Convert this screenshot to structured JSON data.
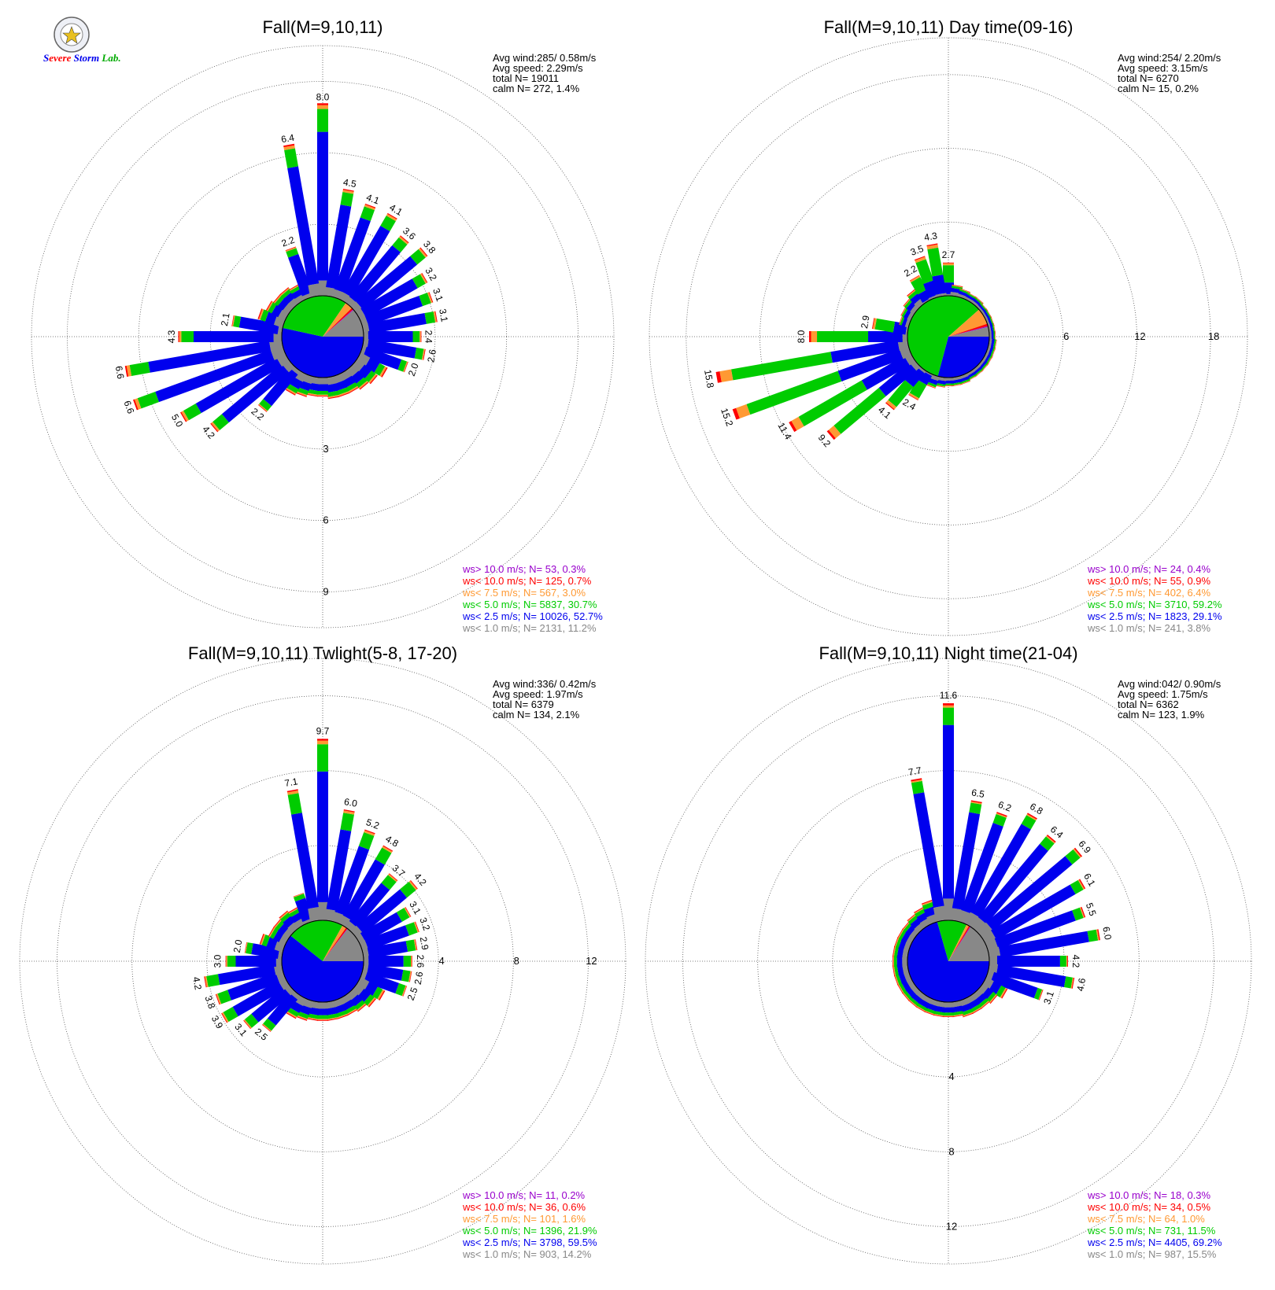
{
  "logo": {
    "text": "Severe Storm Lab."
  },
  "colors": {
    "calm": "#888888",
    "lt1": "#888888",
    "lt2p5": "#0000ee",
    "lt5": "#00cc00",
    "lt7p5": "#ff9933",
    "lt10": "#ff0000",
    "gt10": "#9900cc"
  },
  "chart_data": [
    {
      "type": "polar-bar (wind rose)",
      "title": "Fall(M=9,10,11)",
      "avg_wind": "Avg wind:285/ 0.58m/s",
      "avg_speed": "Avg speed: 2.29m/s",
      "total": "total N=      19011",
      "calm": "calm N=    272,   1.4%",
      "ring_max": 10.5,
      "rings": [
        3,
        6,
        9
      ],
      "ring_label_dir": "south",
      "legend": [
        {
          "label": "ws> 10.0 m/s; N=    53,  0.3%",
          "color": "#9900cc"
        },
        {
          "label": "ws< 10.0 m/s; N=   125,  0.7%",
          "color": "#ff0000"
        },
        {
          "label": "ws<  7.5 m/s; N=   567,  3.0%",
          "color": "#ff9933"
        },
        {
          "label": "ws<  5.0 m/s; N=  5837, 30.7%",
          "color": "#00cc00"
        },
        {
          "label": "ws<  2.5 m/s; N= 10026, 52.7%",
          "color": "#0000ee"
        },
        {
          "label": "ws<  1.0 m/s; N=  2131, 11.2%",
          "color": "#888888"
        }
      ],
      "pie": [
        52.7,
        30.7,
        3.0,
        0.7,
        0.3,
        11.2
      ],
      "directions": [
        0,
        10,
        20,
        30,
        40,
        50,
        60,
        70,
        80,
        90,
        100,
        110,
        120,
        130,
        140,
        150,
        160,
        170,
        180,
        190,
        200,
        210,
        220,
        230,
        240,
        250,
        260,
        270,
        280,
        290,
        300,
        310,
        320,
        330,
        340,
        350
      ],
      "totals": [
        8.0,
        4.5,
        4.1,
        4.1,
        3.6,
        3.8,
        3.2,
        3.1,
        3.1,
        2.4,
        2.6,
        2.0,
        1.3,
        1.1,
        1.0,
        0.9,
        0.9,
        0.9,
        0.8,
        0.8,
        0.9,
        1.0,
        2.2,
        4.2,
        5.0,
        6.6,
        6.6,
        4.3,
        2.1,
        1.1,
        0.9,
        0.8,
        0.8,
        0.7,
        2.2,
        6.4
      ],
      "labeled": [
        "8.0",
        "4.5",
        "4.1",
        "4.1",
        "3.6",
        "3.8",
        "3.2",
        "3.1",
        "3.1",
        "2.4",
        "2.6",
        "2.0",
        "",
        "",
        "",
        "",
        "",
        "",
        "",
        "",
        "",
        "",
        "2.2",
        "4.2",
        "5.0",
        "6.6",
        "6.6",
        "4.3",
        "2.1",
        "",
        "",
        "",
        "",
        "",
        "2.2",
        "6.4"
      ],
      "class_frac": [
        0.08,
        0.78,
        0.12,
        0.02,
        0.01
      ]
    },
    {
      "type": "polar-bar (wind rose)",
      "title": "Fall(M=9,10,11) Day time(09-16)",
      "avg_wind": "Avg wind:254/ 2.20m/s",
      "avg_speed": "Avg speed: 3.15m/s",
      "total": "total N=        6270",
      "calm": "calm N=     15,   0.2%",
      "ring_max": 21,
      "rings": [
        6,
        12,
        18
      ],
      "ring_label_dir": "east",
      "legend": [
        {
          "label": "ws> 10.0 m/s; N=    24,  0.4%",
          "color": "#9900cc"
        },
        {
          "label": "ws< 10.0 m/s; N=    55,  0.9%",
          "color": "#ff0000"
        },
        {
          "label": "ws<  7.5 m/s; N=   402,  6.4%",
          "color": "#ff9933"
        },
        {
          "label": "ws<  5.0 m/s; N=  3710, 59.2%",
          "color": "#00cc00"
        },
        {
          "label": "ws<  2.5 m/s; N=  1823, 29.1%",
          "color": "#0000ee"
        },
        {
          "label": "ws<  1.0 m/s; N=   241,  3.8%",
          "color": "#888888"
        }
      ],
      "pie": [
        29.1,
        59.2,
        6.4,
        0.9,
        0.4,
        3.8
      ],
      "directions": [
        0,
        10,
        20,
        30,
        40,
        50,
        60,
        70,
        80,
        90,
        100,
        110,
        120,
        130,
        140,
        150,
        160,
        170,
        180,
        190,
        200,
        210,
        220,
        230,
        240,
        250,
        260,
        270,
        280,
        290,
        300,
        310,
        320,
        330,
        340,
        350
      ],
      "totals": [
        2.7,
        0.9,
        0.7,
        0.6,
        0.6,
        0.5,
        0.5,
        0.5,
        0.5,
        0.5,
        0.6,
        0.6,
        0.6,
        0.6,
        0.6,
        0.6,
        0.7,
        0.7,
        0.7,
        0.8,
        1.0,
        2.4,
        4.1,
        9.2,
        11.4,
        15.2,
        15.8,
        8.0,
        2.9,
        0.8,
        0.9,
        1.1,
        1.4,
        2.2,
        3.5,
        4.3
      ],
      "labeled": [
        "2.7",
        "",
        "",
        "",
        "",
        "",
        "",
        "",
        "",
        "",
        "",
        "",
        "",
        "",
        "",
        "",
        "",
        "",
        "",
        "",
        "",
        "2.4",
        "4.1",
        "9.2",
        "11.4",
        "15.2",
        "15.8",
        "8.0",
        "2.9",
        "",
        "",
        "",
        "",
        "2.2",
        "3.5",
        "4.3"
      ],
      "class_frac": [
        0.05,
        0.35,
        0.52,
        0.06,
        0.02
      ]
    },
    {
      "type": "polar-bar (wind rose)",
      "title": "Fall(M=9,10,11) Twlight(5-8, 17-20)",
      "avg_wind": "Avg wind:336/ 0.42m/s",
      "avg_speed": "Avg speed: 1.97m/s",
      "total": "total N=        6379",
      "calm": "calm N=    134,   2.1%",
      "ring_max": 14,
      "rings": [
        4,
        8,
        12
      ],
      "ring_label_dir": "east",
      "legend": [
        {
          "label": "ws> 10.0 m/s; N=    11,  0.2%",
          "color": "#9900cc"
        },
        {
          "label": "ws< 10.0 m/s; N=    36,  0.6%",
          "color": "#ff0000"
        },
        {
          "label": "ws<  7.5 m/s; N=   101,  1.6%",
          "color": "#ff9933"
        },
        {
          "label": "ws<  5.0 m/s; N=  1396, 21.9%",
          "color": "#00cc00"
        },
        {
          "label": "ws<  2.5 m/s; N=  3798, 59.5%",
          "color": "#0000ee"
        },
        {
          "label": "ws<  1.0 m/s; N=   903, 14.2%",
          "color": "#888888"
        }
      ],
      "pie": [
        59.5,
        21.9,
        1.6,
        0.6,
        0.2,
        14.2
      ],
      "directions": [
        0,
        10,
        20,
        30,
        40,
        50,
        60,
        70,
        80,
        90,
        100,
        110,
        120,
        130,
        140,
        150,
        160,
        170,
        180,
        190,
        200,
        210,
        220,
        230,
        240,
        250,
        260,
        270,
        280,
        290,
        300,
        310,
        320,
        330,
        340,
        350
      ],
      "totals": [
        9.7,
        6.0,
        5.2,
        4.8,
        3.7,
        4.2,
        3.1,
        3.2,
        2.9,
        2.6,
        2.6,
        2.5,
        1.5,
        1.3,
        1.1,
        1.0,
        1.0,
        1.0,
        1.0,
        1.0,
        1.1,
        1.2,
        2.5,
        3.1,
        3.9,
        3.8,
        4.2,
        3.0,
        2.0,
        1.3,
        1.0,
        1.0,
        1.1,
        1.0,
        1.6,
        7.1
      ],
      "labeled": [
        "9.7",
        "6.0",
        "5.2",
        "4.8",
        "3.7",
        "4.2",
        "3.1",
        "3.2",
        "2.9",
        "2.6",
        "2.6",
        "2.5",
        "",
        "",
        "",
        "",
        "",
        "",
        "",
        "",
        "",
        "",
        "2.5",
        "3.1",
        "3.9",
        "3.8",
        "4.2",
        "3.0",
        "2.0",
        "",
        "",
        "",
        "",
        "",
        "",
        "7.1"
      ],
      "class_frac": [
        0.1,
        0.72,
        0.15,
        0.02,
        0.01
      ]
    },
    {
      "type": "polar-bar (wind rose)",
      "title": "Fall(M=9,10,11) Night time(21-04)",
      "avg_wind": "Avg wind:042/ 0.90m/s",
      "avg_speed": "Avg speed: 1.75m/s",
      "total": "total N=        6362",
      "calm": "calm N=    123,   1.9%",
      "ring_max": 14,
      "rings": [
        4,
        8,
        12
      ],
      "ring_label_dir": "south",
      "legend": [
        {
          "label": "ws> 10.0 m/s; N=    18,  0.3%",
          "color": "#9900cc"
        },
        {
          "label": "ws< 10.0 m/s; N=    34,  0.5%",
          "color": "#ff0000"
        },
        {
          "label": "ws<  7.5 m/s; N=    64,  1.0%",
          "color": "#ff9933"
        },
        {
          "label": "ws<  5.0 m/s; N=   731, 11.5%",
          "color": "#00cc00"
        },
        {
          "label": "ws<  2.5 m/s; N=  4405, 69.2%",
          "color": "#0000ee"
        },
        {
          "label": "ws<  1.0 m/s; N=   987, 15.5%",
          "color": "#888888"
        }
      ],
      "pie": [
        69.2,
        11.5,
        1.0,
        0.5,
        0.3,
        15.5
      ],
      "directions": [
        0,
        10,
        20,
        30,
        40,
        50,
        60,
        70,
        80,
        90,
        100,
        110,
        120,
        130,
        140,
        150,
        160,
        170,
        180,
        190,
        200,
        210,
        220,
        230,
        240,
        250,
        260,
        270,
        280,
        290,
        300,
        310,
        320,
        330,
        340,
        350
      ],
      "totals": [
        11.6,
        6.5,
        6.2,
        6.8,
        6.4,
        6.9,
        6.1,
        5.5,
        6.0,
        4.2,
        4.6,
        3.1,
        1.3,
        1.0,
        0.9,
        0.9,
        0.9,
        0.8,
        0.8,
        0.8,
        0.8,
        0.8,
        0.8,
        0.8,
        0.8,
        0.8,
        0.8,
        0.8,
        0.8,
        0.8,
        0.8,
        0.8,
        0.9,
        1.0,
        1.2,
        7.7
      ],
      "labeled": [
        "11.6",
        "6.5",
        "6.2",
        "6.8",
        "6.4",
        "6.9",
        "6.1",
        "5.5",
        "6.0",
        "4.2",
        "4.6",
        "3.1",
        "",
        "",
        "",
        "",
        "",
        "",
        "",
        "",
        "",
        "",
        "",
        "",
        "",
        "",
        "",
        "",
        "",
        "",
        "",
        "",
        "",
        "",
        "",
        "7.7"
      ],
      "class_frac": [
        0.1,
        0.8,
        0.08,
        0.01,
        0.01
      ]
    }
  ]
}
